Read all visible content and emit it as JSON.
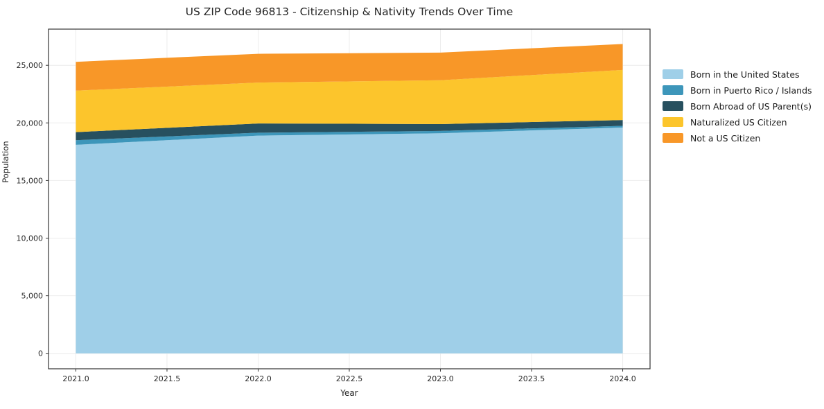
{
  "title": "US ZIP Code 96813 - Citizenship & Nativity Trends Over Time",
  "chart_data": {
    "type": "area",
    "stacked": true,
    "title": "US ZIP Code 96813 - Citizenship & Nativity Trends Over Time",
    "xlabel": "Year",
    "ylabel": "Population",
    "x": [
      2021,
      2022,
      2023,
      2024
    ],
    "series": [
      {
        "name": "Born in the United States",
        "color": "#9fcfe8",
        "values": [
          18100,
          18900,
          19100,
          19600
        ]
      },
      {
        "name": "Born in Puerto Rico / Islands",
        "color": "#3d96ba",
        "values": [
          400,
          250,
          200,
          150
        ]
      },
      {
        "name": "Born Abroad of US Parent(s)",
        "color": "#27505f",
        "values": [
          700,
          800,
          600,
          500
        ]
      },
      {
        "name": "Naturalized US Citizen",
        "color": "#fcc52c",
        "values": [
          3600,
          3550,
          3800,
          4350
        ]
      },
      {
        "name": "Not a US Citizen",
        "color": "#f89728",
        "values": [
          2500,
          2500,
          2400,
          2250
        ]
      }
    ],
    "x_ticks": [
      2021.0,
      2021.5,
      2022.0,
      2022.5,
      2023.0,
      2023.5,
      2024.0
    ],
    "x_tick_labels": [
      "2021.0",
      "2021.5",
      "2022.0",
      "2022.5",
      "2023.0",
      "2023.5",
      "2024.0"
    ],
    "y_ticks": [
      0,
      5000,
      10000,
      15000,
      20000,
      25000
    ],
    "y_tick_labels": [
      "0",
      "5,000",
      "10,000",
      "15,000",
      "20,000",
      "25,000"
    ],
    "xlim": [
      2020.85,
      2024.15
    ],
    "ylim": [
      -1340,
      28140
    ],
    "grid": true,
    "legend_position": "right"
  }
}
